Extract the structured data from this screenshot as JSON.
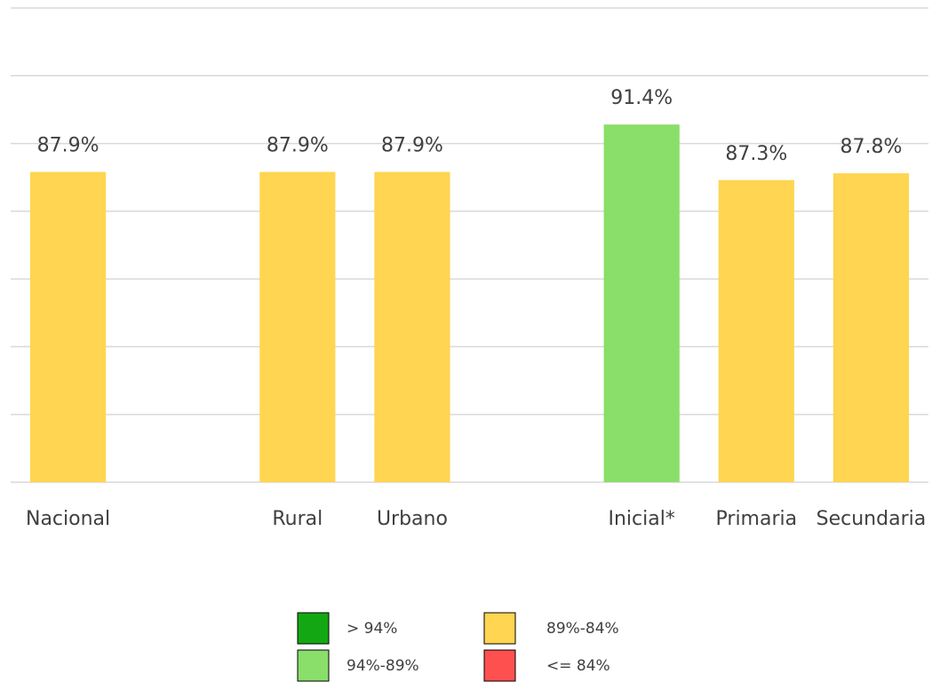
{
  "chart_data": {
    "type": "bar",
    "categories": [
      "Nacional",
      null,
      "Rural",
      "Urbano",
      null,
      "Inicial*",
      "Primaria",
      "Secundaria"
    ],
    "values": [
      87.9,
      null,
      87.9,
      87.9,
      null,
      91.4,
      87.3,
      87.8
    ],
    "value_labels": [
      "87.9%",
      null,
      "87.9%",
      "87.9%",
      null,
      "91.4%",
      "87.3%",
      "87.8%"
    ],
    "colors": [
      "#ffd551",
      null,
      "#ffd551",
      "#ffd551",
      null,
      "#8ade6a",
      "#ffd551",
      "#ffd551"
    ],
    "ylim": [
      65,
      100
    ],
    "yticks": [
      65,
      70,
      75,
      80,
      85,
      90,
      95,
      100
    ],
    "grid": true,
    "legend": [
      {
        "label": "> 94%",
        "color": "#13a813"
      },
      {
        "label": "94%-89%",
        "color": "#8ade6a"
      },
      {
        "label": "89%-84%",
        "color": "#ffd551"
      },
      {
        "label": "<= 84%",
        "color": "#ff5050"
      }
    ]
  }
}
